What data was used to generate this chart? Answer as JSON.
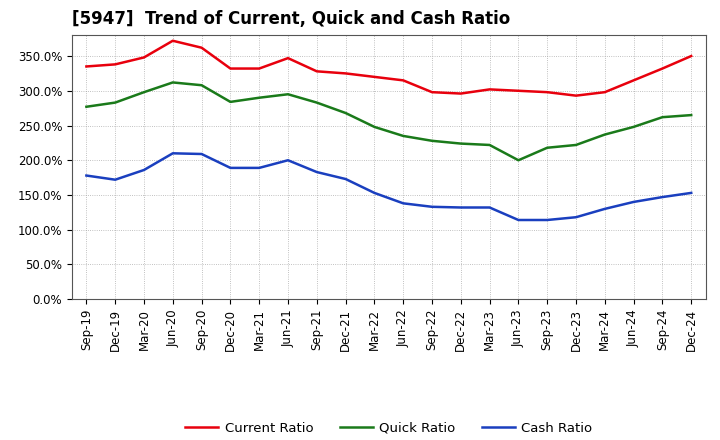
{
  "title": "[5947]  Trend of Current, Quick and Cash Ratio",
  "x_labels": [
    "Sep-19",
    "Dec-19",
    "Mar-20",
    "Jun-20",
    "Sep-20",
    "Dec-20",
    "Mar-21",
    "Jun-21",
    "Sep-21",
    "Dec-21",
    "Mar-22",
    "Jun-22",
    "Sep-22",
    "Dec-22",
    "Mar-23",
    "Jun-23",
    "Sep-23",
    "Dec-23",
    "Mar-24",
    "Jun-24",
    "Sep-24",
    "Dec-24"
  ],
  "current_ratio": [
    335,
    338,
    348,
    372,
    362,
    332,
    332,
    347,
    328,
    325,
    320,
    315,
    298,
    296,
    302,
    300,
    298,
    293,
    298,
    315,
    332,
    350
  ],
  "quick_ratio": [
    277,
    283,
    298,
    312,
    308,
    284,
    290,
    295,
    283,
    268,
    248,
    235,
    228,
    224,
    222,
    200,
    218,
    222,
    237,
    248,
    262,
    265
  ],
  "cash_ratio": [
    178,
    172,
    186,
    210,
    209,
    189,
    189,
    200,
    183,
    173,
    153,
    138,
    133,
    132,
    132,
    114,
    114,
    118,
    130,
    140,
    147,
    153
  ],
  "current_color": "#e8000d",
  "quick_color": "#1a7a1a",
  "cash_color": "#1a3fbf",
  "bg_color": "#ffffff",
  "plot_bg_color": "#ffffff",
  "grid_color": "#999999",
  "ylim": [
    0,
    380
  ],
  "yticks": [
    0,
    50,
    100,
    150,
    200,
    250,
    300,
    350
  ],
  "ytick_labels": [
    "0.0%",
    "50.0%",
    "100.0%",
    "150.0%",
    "200.0%",
    "250.0%",
    "300.0%",
    "350.0%"
  ],
  "legend_labels": [
    "Current Ratio",
    "Quick Ratio",
    "Cash Ratio"
  ],
  "title_fontsize": 12,
  "tick_fontsize": 8.5,
  "legend_fontsize": 9.5,
  "linewidth": 1.8
}
